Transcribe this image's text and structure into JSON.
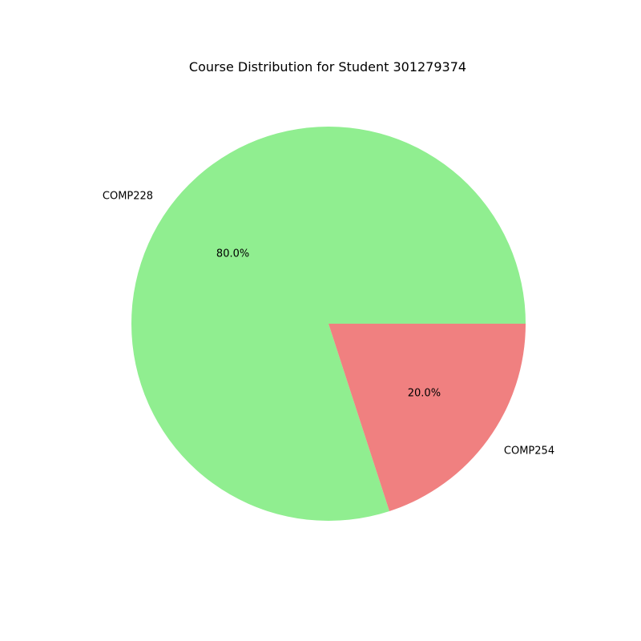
{
  "chart_data": {
    "type": "pie",
    "title": "Course Distribution for Student 301279374",
    "categories": [
      "COMP228",
      "COMP254"
    ],
    "values": [
      80.0,
      20.0
    ],
    "percent_labels": [
      "80.0%",
      "20.0%"
    ],
    "colors": [
      "#90ee90",
      "#f08080"
    ],
    "start_angle_deg": 0,
    "direction": "counterclockwise"
  }
}
